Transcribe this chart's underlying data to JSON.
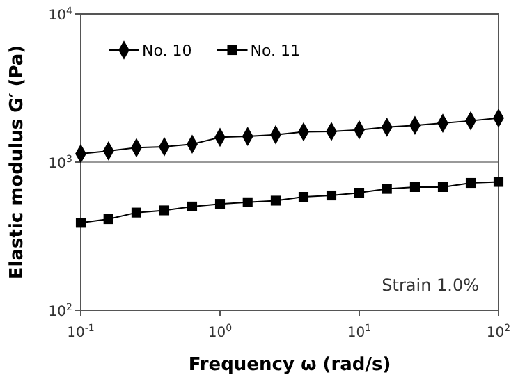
{
  "chart_data": {
    "type": "line",
    "xlabel": "Frequency  ω  (rad/s)",
    "ylabel": "Elastic  modulus  G′  (Pa)",
    "x": [
      0.1,
      0.158,
      0.251,
      0.398,
      0.631,
      1,
      1.58,
      2.51,
      3.98,
      6.31,
      10,
      15.8,
      25.1,
      39.8,
      63.1,
      100
    ],
    "series": [
      {
        "name": "No. 10",
        "color": "#000000",
        "marker": "diamond",
        "values": [
          1140,
          1190,
          1250,
          1270,
          1320,
          1470,
          1490,
          1530,
          1600,
          1610,
          1650,
          1720,
          1770,
          1830,
          1900,
          1980
        ]
      },
      {
        "name": "No. 11",
        "color": "#000000",
        "marker": "square",
        "values": [
          389,
          412,
          456,
          472,
          501,
          522,
          535,
          549,
          582,
          595,
          621,
          659,
          678,
          678,
          723,
          735
        ]
      }
    ],
    "log": "xy",
    "xlim": [
      0.1,
      100
    ],
    "ylim": [
      100,
      10000
    ],
    "xticks": [
      {
        "value": 0.1,
        "label": "10$^{-1}$"
      },
      {
        "value": 1,
        "label": "10$^{0}$"
      },
      {
        "value": 10,
        "label": "10$^{1}$"
      },
      {
        "value": 100,
        "label": "10$^{2}$"
      }
    ],
    "yticks": [
      {
        "value": 100,
        "label": "10$^{2}$"
      },
      {
        "value": 1000,
        "label": "10$^{3}$"
      },
      {
        "value": 10000,
        "label": "10$^{4}$"
      }
    ],
    "grid": "y",
    "legend": "top left",
    "line_style": "solid",
    "annotations": [
      "Strain 1.0%"
    ]
  }
}
